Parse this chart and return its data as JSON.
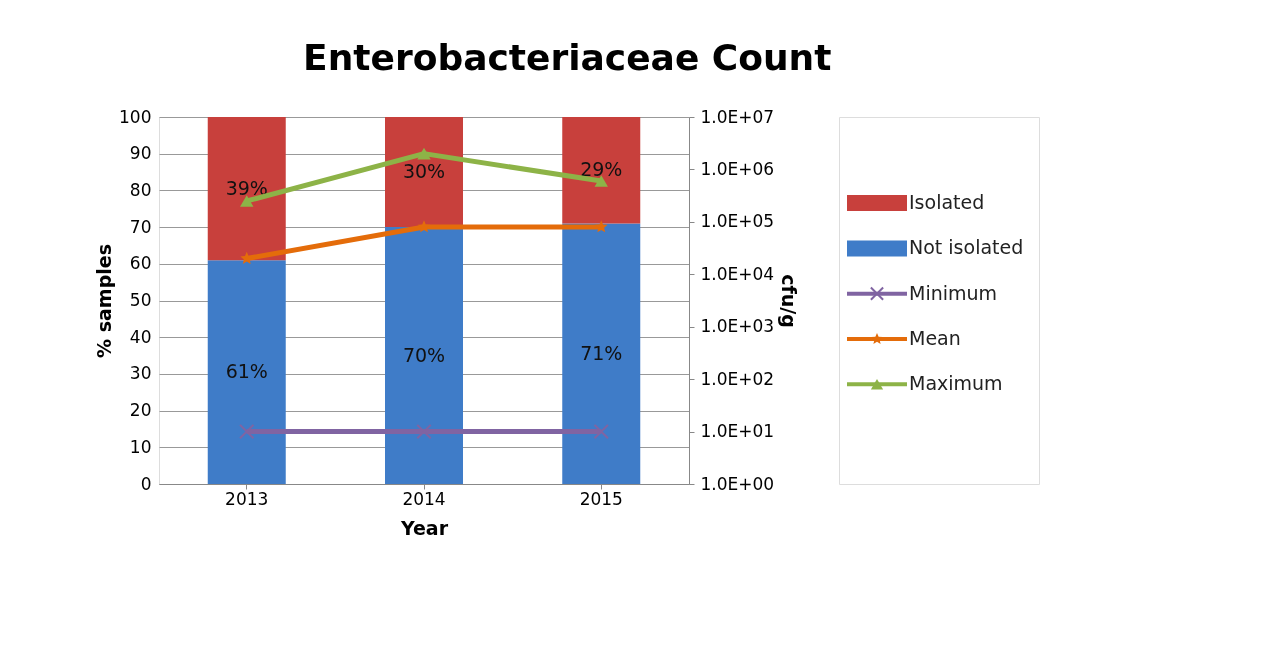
{
  "chart_data": {
    "type": "bar",
    "title": "Enterobacteriaceae Count",
    "xlabel": "Year",
    "ylabel": "% samples",
    "y2label": "cfu/g",
    "categories": [
      "2013",
      "2014",
      "2015"
    ],
    "stacked": true,
    "ylim": [
      0,
      100
    ],
    "yticks": [
      0,
      10,
      20,
      30,
      40,
      50,
      60,
      70,
      80,
      90,
      100
    ],
    "y2lim": [
      1,
      10000000
    ],
    "y2ticks": [
      {
        "value": 1,
        "label": "1.0E+00"
      },
      {
        "value": 10,
        "label": "1.0E+01"
      },
      {
        "value": 100,
        "label": "1.0E+02"
      },
      {
        "value": 1000,
        "label": "1.0E+03"
      },
      {
        "value": 10000,
        "label": "1.0E+04"
      },
      {
        "value": 100000,
        "label": "1.0E+05"
      },
      {
        "value": 1000000,
        "label": "1.0E+06"
      },
      {
        "value": 10000000,
        "label": "1.0E+07"
      }
    ],
    "log": "y2",
    "grid": "y",
    "legend": "right",
    "series": [
      {
        "name": "Not isolated",
        "color": "#3f7cc8",
        "values": [
          61,
          70,
          71
        ],
        "value_labels": [
          "61%",
          "70%",
          "71%"
        ]
      },
      {
        "name": "Isolated",
        "color": "#c8403c",
        "values": [
          39,
          30,
          29
        ],
        "value_labels": [
          "39%",
          "30%",
          "29%"
        ]
      },
      {
        "name": "Minimum",
        "type": "line",
        "axis": "y2",
        "color": "#8064a2",
        "marker": "cross",
        "values": [
          10,
          10,
          10
        ]
      },
      {
        "name": "Mean",
        "type": "line",
        "axis": "y2",
        "color": "#e46c0a",
        "marker": "star",
        "values": [
          20000,
          80000,
          80000
        ]
      },
      {
        "name": "Maximum",
        "type": "line",
        "axis": "y2",
        "color": "#8db347",
        "marker": "triangle",
        "values": [
          250000,
          2000000,
          600000
        ]
      }
    ]
  }
}
